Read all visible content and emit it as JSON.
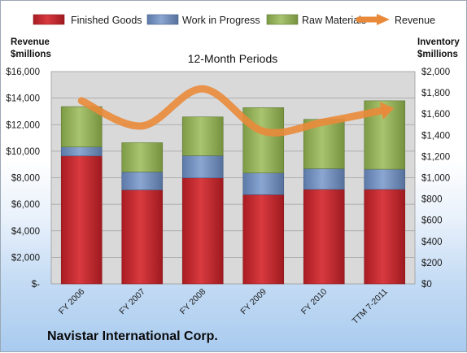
{
  "company_name": "Navistar International Corp.",
  "colors": {
    "finished_goods": "#c0272d",
    "work_in_progress": "#6f8fbf",
    "raw_materials": "#93b05a",
    "revenue": "#e98a3a",
    "plot_bg": "#d9d9d9"
  },
  "chart_data": {
    "type": "bar",
    "stacked": true,
    "title": "12-Month Periods",
    "y_left_label": [
      "Revenue",
      "$millions"
    ],
    "y_right_label": [
      "Inventory",
      "$millions"
    ],
    "categories": [
      "FY 2006",
      "FY 2007",
      "FY 2008",
      "FY 2009",
      "FY 2010",
      "TTM 7-2011"
    ],
    "series": [
      {
        "name": "Finished Goods",
        "axis": "right",
        "values": [
          1205,
          885,
          998,
          840,
          890,
          890
        ]
      },
      {
        "name": "Work in Progress",
        "axis": "right",
        "values": [
          85,
          170,
          210,
          205,
          195,
          190
        ]
      },
      {
        "name": "Raw Materials",
        "axis": "right",
        "values": [
          380,
          275,
          365,
          615,
          465,
          645
        ]
      },
      {
        "name": "Revenue",
        "type": "line",
        "axis": "left",
        "values": [
          13800,
          11900,
          14700,
          11500,
          12200,
          13100
        ]
      }
    ],
    "y_left": {
      "min": 0,
      "max": 16000,
      "ticks": [
        "$-",
        "$2,000",
        "$4,000",
        "$6,000",
        "$8,000",
        "$10,000",
        "$12,000",
        "$14,000",
        "$16,000"
      ]
    },
    "y_right": {
      "min": 0,
      "max": 2000,
      "ticks": [
        "$0",
        "$200",
        "$400",
        "$600",
        "$800",
        "$1,000",
        "$1,200",
        "$1,400",
        "$1,600",
        "$1,800",
        "$2,000"
      ]
    },
    "legend_position": "top",
    "grid": true
  }
}
